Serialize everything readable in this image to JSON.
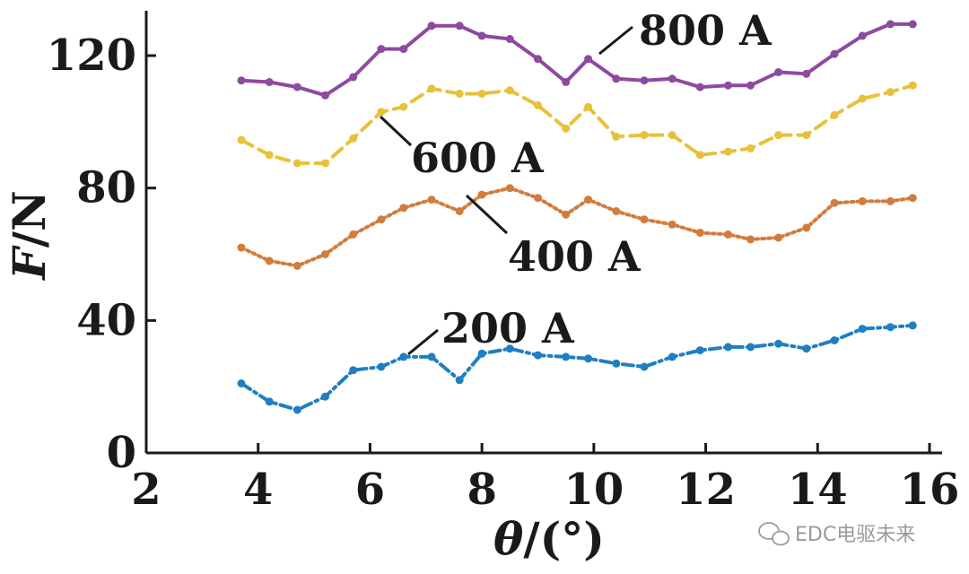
{
  "chart_data": {
    "type": "line",
    "title": "",
    "xlabel_var": "θ",
    "xlabel_unit": "/(°)",
    "ylabel_var": "F",
    "ylabel_unit": "/N",
    "xlim": [
      2,
      16
    ],
    "ylim": [
      0,
      135
    ],
    "xticks": [
      2,
      4,
      6,
      8,
      10,
      12,
      14,
      16
    ],
    "yticks": [
      0,
      40,
      80,
      120
    ],
    "x": [
      3.7,
      4.2,
      4.7,
      5.2,
      5.7,
      6.2,
      6.6,
      7.1,
      7.6,
      8.0,
      8.5,
      9.0,
      9.5,
      9.9,
      10.4,
      10.9,
      11.4,
      11.9,
      12.4,
      12.8,
      13.3,
      13.8,
      14.3,
      14.8,
      15.3,
      15.7
    ],
    "series": [
      {
        "name": "800 A",
        "color": "#8e4a9e",
        "dash": "solid",
        "values": [
          112.5,
          112,
          110.5,
          108,
          113.5,
          122,
          122,
          129,
          129,
          126,
          125,
          119,
          112,
          119,
          113,
          112.5,
          113,
          110.5,
          111,
          111,
          115,
          114.5,
          120.5,
          126,
          129.5,
          129.5
        ]
      },
      {
        "name": "600 A",
        "color": "#e8c13a",
        "dash": "dashed",
        "values": [
          94.5,
          90,
          87.5,
          87.5,
          95,
          103,
          104.5,
          110,
          108.5,
          108.5,
          109.5,
          105,
          98,
          104.5,
          95.5,
          96,
          96,
          90,
          91,
          92,
          96,
          96,
          102,
          107,
          109,
          111
        ]
      },
      {
        "name": "400 A",
        "color": "#d27c3c",
        "dash": "dotted",
        "values": [
          62,
          58,
          56.5,
          60,
          66,
          70.5,
          74,
          76.5,
          73,
          78,
          80,
          77,
          72,
          76.5,
          73,
          70.5,
          69,
          66.5,
          66,
          64.5,
          65,
          68,
          75.5,
          76,
          76,
          77
        ]
      },
      {
        "name": "200 A",
        "color": "#1f7fc0",
        "dash": "dashdot",
        "values": [
          21,
          15.5,
          13,
          17,
          25,
          26,
          29,
          29,
          22,
          30,
          31.5,
          29.5,
          29,
          28.5,
          27,
          26,
          29,
          31,
          32,
          32,
          33,
          31.5,
          34,
          37.5,
          38,
          38.5
        ]
      }
    ],
    "annotations": [
      {
        "text": "800 A"
      },
      {
        "text": "600 A"
      },
      {
        "text": "400 A"
      },
      {
        "text": "200 A"
      }
    ]
  },
  "watermark": {
    "text": "EDC电驱未来",
    "icon": "wechat-icon"
  }
}
